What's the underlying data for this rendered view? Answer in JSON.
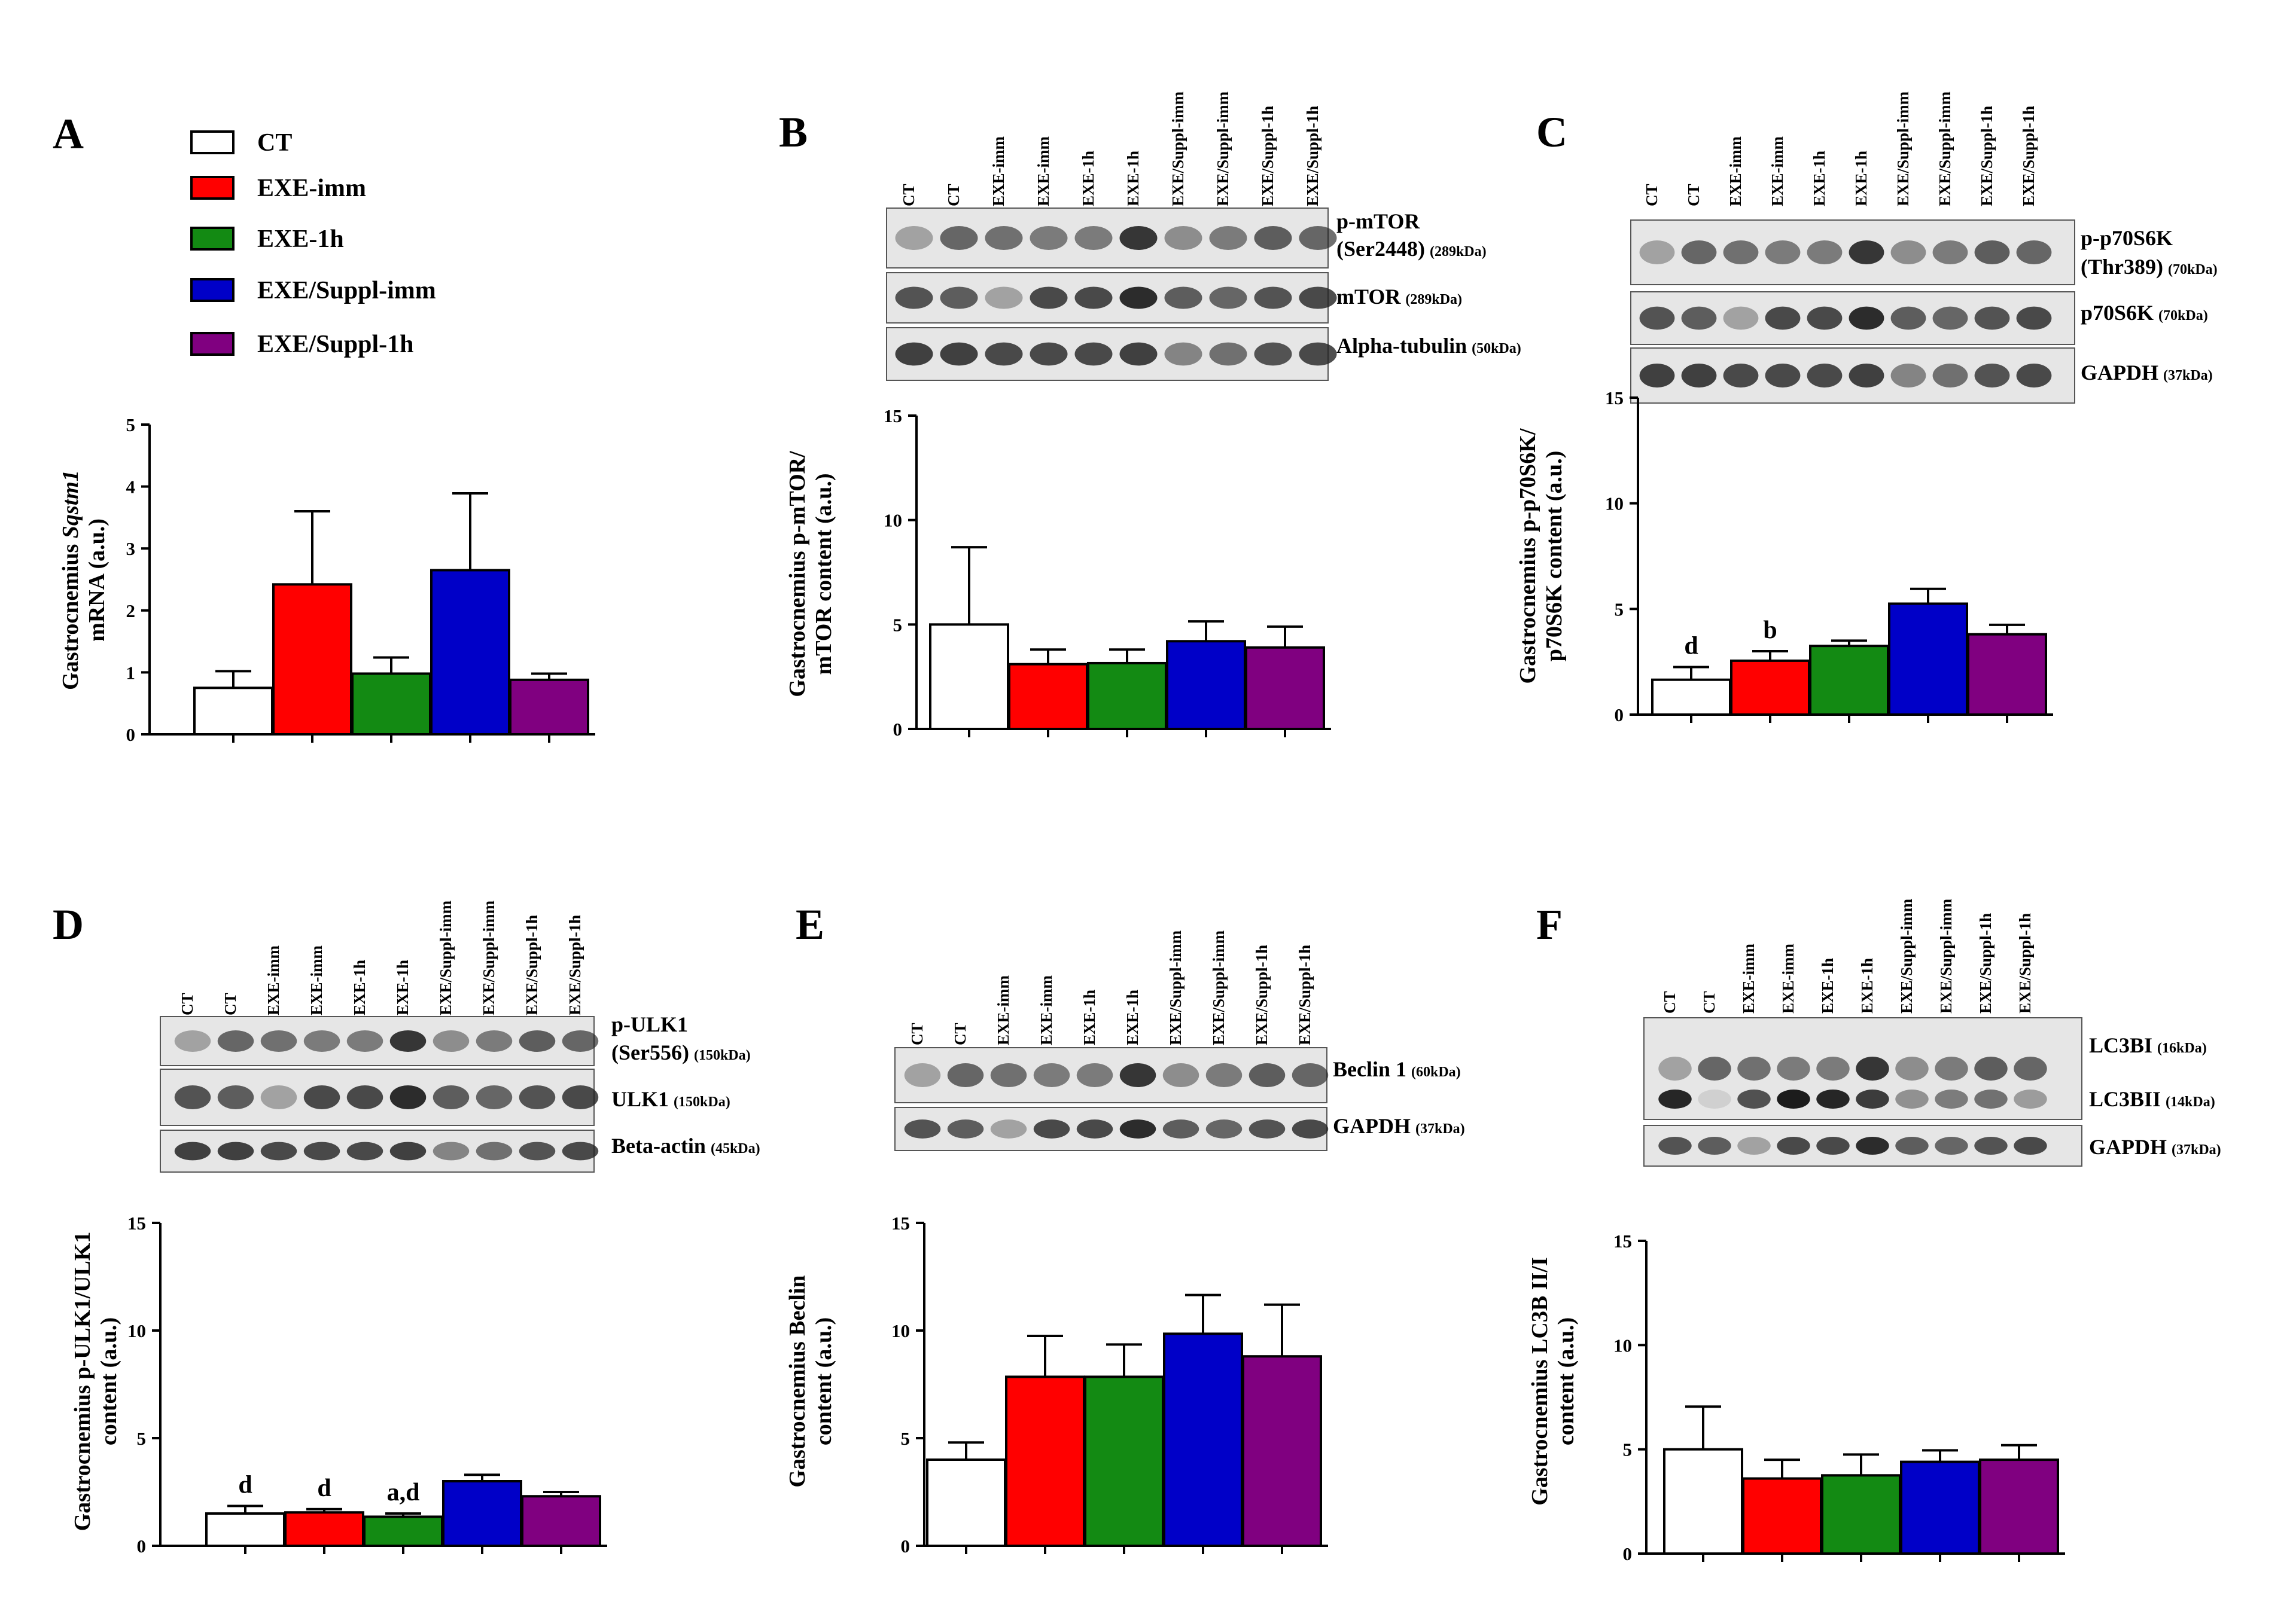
{
  "legend": {
    "items": [
      {
        "label": "CT",
        "color": "#ffffff"
      },
      {
        "label": "EXE-imm",
        "color": "#ff0000"
      },
      {
        "label": "EXE-1h",
        "color": "#138a13"
      },
      {
        "label": "EXE/Suppl-imm",
        "color": "#0000c8"
      },
      {
        "label": "EXE/Suppl-1h",
        "color": "#800080"
      }
    ]
  },
  "chart_data": [
    {
      "letter": "A",
      "type": "bar",
      "categories": [
        "CT",
        "EXE-imm",
        "EXE-1h",
        "EXE/Suppl-imm",
        "EXE/Suppl-1h"
      ],
      "values": [
        0.75,
        2.42,
        0.98,
        2.65,
        0.88
      ],
      "errors": [
        0.27,
        1.18,
        0.26,
        1.24,
        0.1
      ],
      "ylabel_pre": "Gastrocnemius ",
      "ylabel_italic": "Sqstm1",
      "ylabel_line2": "mRNA (a.u.)",
      "ylim": [
        0,
        5
      ],
      "yticks": [
        "0",
        "1",
        "2",
        "3",
        "4",
        "5"
      ],
      "sig": [
        "",
        "",
        "",
        "",
        ""
      ],
      "blot": null
    },
    {
      "letter": "B",
      "type": "bar",
      "categories": [
        "CT",
        "EXE-imm",
        "EXE-1h",
        "EXE/Suppl-imm",
        "EXE/Suppl-1h"
      ],
      "values": [
        5.0,
        3.1,
        3.15,
        4.2,
        3.9
      ],
      "errors": [
        3.7,
        0.7,
        0.65,
        0.95,
        1.0
      ],
      "ylabel_pre": "Gastrocnemius p-mTOR/",
      "ylabel_italic": "",
      "ylabel_line2": "mTOR content (a.u.)",
      "ylim": [
        0,
        15
      ],
      "yticks": [
        "0",
        "5",
        "10",
        "15"
      ],
      "sig": [
        "",
        "",
        "",
        "",
        ""
      ],
      "blot": {
        "lanes": [
          "CT",
          "CT",
          "EXE-imm",
          "EXE-imm",
          "EXE-1h",
          "EXE-1h",
          "EXE/Suppl-imm",
          "EXE/Suppl-imm",
          "EXE/Suppl-1h",
          "EXE/Suppl-1h"
        ],
        "rows": [
          {
            "label": "p-mTOR",
            "label2": "(Ser2448)",
            "kda": "(289kDa)"
          },
          {
            "label": "mTOR",
            "label2": "",
            "kda": "(289kDa)"
          },
          {
            "label": "Alpha-tubulin",
            "label2": "",
            "kda": "(50kDa)"
          }
        ]
      }
    },
    {
      "letter": "C",
      "type": "bar",
      "categories": [
        "CT",
        "EXE-imm",
        "EXE-1h",
        "EXE/Suppl-imm",
        "EXE/Suppl-1h"
      ],
      "values": [
        1.65,
        2.55,
        3.25,
        5.25,
        3.8
      ],
      "errors": [
        0.6,
        0.45,
        0.25,
        0.7,
        0.45
      ],
      "ylabel_pre": "Gastrocnemius p-p70S6K/",
      "ylabel_italic": "",
      "ylabel_line2": "p70S6K content (a.u.)",
      "ylim": [
        0,
        15
      ],
      "yticks": [
        "0",
        "5",
        "10",
        "15"
      ],
      "sig": [
        "d",
        "b",
        "",
        "",
        ""
      ],
      "blot": {
        "lanes": [
          "CT",
          "CT",
          "EXE-imm",
          "EXE-imm",
          "EXE-1h",
          "EXE-1h",
          "EXE/Suppl-imm",
          "EXE/Suppl-imm",
          "EXE/Suppl-1h",
          "EXE/Suppl-1h"
        ],
        "rows": [
          {
            "label": "p-p70S6K",
            "label2": "(Thr389)",
            "kda": "(70kDa)"
          },
          {
            "label": "p70S6K",
            "label2": "",
            "kda": "(70kDa)"
          },
          {
            "label": "GAPDH",
            "label2": "",
            "kda": "(37kDa)"
          }
        ]
      }
    },
    {
      "letter": "D",
      "type": "bar",
      "categories": [
        "CT",
        "EXE-imm",
        "EXE-1h",
        "EXE/Suppl-imm",
        "EXE/Suppl-1h"
      ],
      "values": [
        1.5,
        1.55,
        1.35,
        3.0,
        2.3
      ],
      "errors": [
        0.35,
        0.15,
        0.15,
        0.3,
        0.2
      ],
      "ylabel_pre": "Gastrocnemius p-ULK1/ULK1",
      "ylabel_italic": "",
      "ylabel_line2": "content (a.u.)",
      "ylim": [
        0,
        15
      ],
      "yticks": [
        "0",
        "5",
        "10",
        "15"
      ],
      "sig": [
        "d",
        "d",
        "a,d",
        "",
        ""
      ],
      "blot": {
        "lanes": [
          "CT",
          "CT",
          "EXE-imm",
          "EXE-imm",
          "EXE-1h",
          "EXE-1h",
          "EXE/Suppl-imm",
          "EXE/Suppl-imm",
          "EXE/Suppl-1h",
          "EXE/Suppl-1h"
        ],
        "rows": [
          {
            "label": "p-ULK1",
            "label2": "(Ser556)",
            "kda": "(150kDa)"
          },
          {
            "label": "ULK1",
            "label2": "",
            "kda": "(150kDa)"
          },
          {
            "label": "Beta-actin",
            "label2": "",
            "kda": "(45kDa)"
          }
        ]
      }
    },
    {
      "letter": "E",
      "type": "bar",
      "categories": [
        "CT",
        "EXE-imm",
        "EXE-1h",
        "EXE/Suppl-imm",
        "EXE/Suppl-1h"
      ],
      "values": [
        4.0,
        7.85,
        7.85,
        9.85,
        8.8
      ],
      "errors": [
        0.8,
        1.9,
        1.5,
        1.8,
        2.4
      ],
      "ylabel_pre": "Gastrocnemius Beclin",
      "ylabel_italic": "",
      "ylabel_line2": "content (a.u.)",
      "ylim": [
        0,
        15
      ],
      "yticks": [
        "0",
        "5",
        "10",
        "15"
      ],
      "sig": [
        "",
        "",
        "",
        "",
        ""
      ],
      "blot": {
        "lanes": [
          "CT",
          "CT",
          "EXE-imm",
          "EXE-imm",
          "EXE-1h",
          "EXE-1h",
          "EXE/Suppl-imm",
          "EXE/Suppl-imm",
          "EXE/Suppl-1h",
          "EXE/Suppl-1h"
        ],
        "rows": [
          {
            "label": "Beclin 1",
            "label2": "",
            "kda": "(60kDa)"
          },
          {
            "label": "GAPDH",
            "label2": "",
            "kda": "(37kDa)"
          }
        ]
      }
    },
    {
      "letter": "F",
      "type": "bar",
      "categories": [
        "CT",
        "EXE-imm",
        "EXE-1h",
        "EXE/Suppl-imm",
        "EXE/Suppl-1h"
      ],
      "values": [
        5.0,
        3.6,
        3.75,
        4.4,
        4.5
      ],
      "errors": [
        2.05,
        0.9,
        1.0,
        0.55,
        0.7
      ],
      "ylabel_pre": "Gastrocnemius LC3B II/I",
      "ylabel_italic": "",
      "ylabel_line2": "content (a.u.)",
      "ylim": [
        0,
        15
      ],
      "yticks": [
        "0",
        "5",
        "10",
        "15"
      ],
      "sig": [
        "",
        "",
        "",
        "",
        ""
      ],
      "blot": {
        "lanes": [
          "CT",
          "CT",
          "EXE-imm",
          "EXE-imm",
          "EXE-1h",
          "EXE-1h",
          "EXE/Suppl-imm",
          "EXE/Suppl-imm",
          "EXE/Suppl-1h",
          "EXE/Suppl-1h"
        ],
        "rows": [
          {
            "label": "LC3BI",
            "label2": "",
            "kda": "(16kDa)"
          },
          {
            "label": "LC3BII",
            "label2": "",
            "kda": "(14kDa)"
          },
          {
            "label": "GAPDH",
            "label2": "",
            "kda": "(37kDa)"
          }
        ]
      }
    }
  ]
}
